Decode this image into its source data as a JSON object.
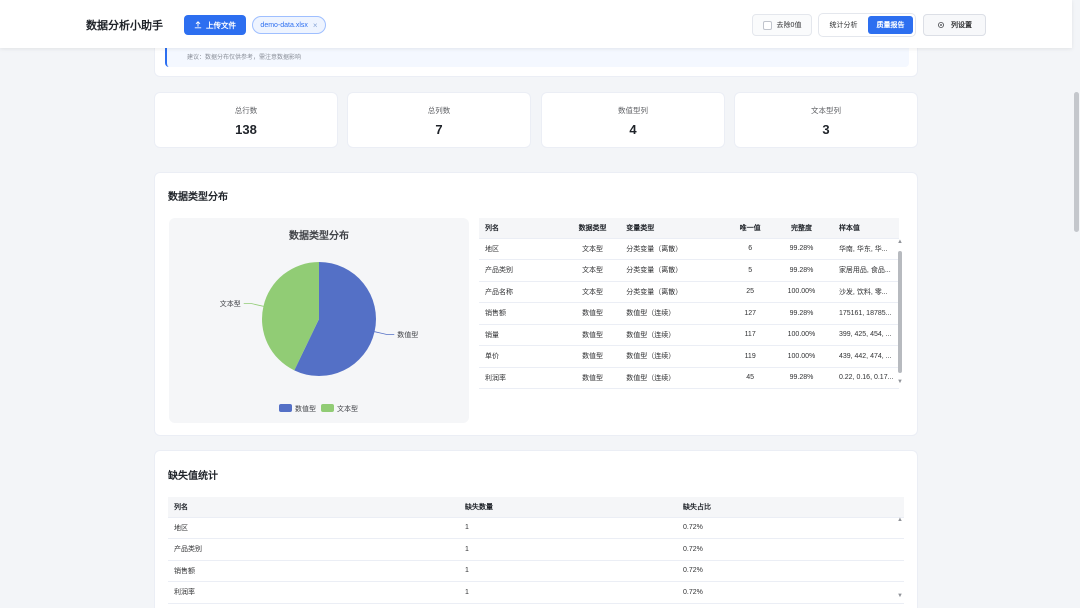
{
  "header": {
    "title": "数据分析小助手",
    "upload_label": "上传文件",
    "file_name": "demo-data.xlsx",
    "file_close": "×",
    "remove_zero_label": "去除0值",
    "tabs": [
      {
        "label": "统计分析",
        "active": false
      },
      {
        "label": "质量报告",
        "active": true
      }
    ],
    "column_settings_label": "列设置"
  },
  "note": {
    "text": "建议：数据分布仅供参考，需注意数据影响"
  },
  "stats": [
    {
      "label": "总行数",
      "value": "138"
    },
    {
      "label": "总列数",
      "value": "7"
    },
    {
      "label": "数值型列",
      "value": "4"
    },
    {
      "label": "文本型列",
      "value": "3"
    }
  ],
  "distribution": {
    "title": "数据类型分布",
    "chart_title": "数据类型分布",
    "table_headers": [
      "列名",
      "数据类型",
      "变量类型",
      "唯一值",
      "完整度",
      "样本值"
    ],
    "rows": [
      {
        "name": "地区",
        "dtype": "文本型",
        "vtype": "分类变量（离散）",
        "unique": "6",
        "complete": "99.28%",
        "sample": "华南, 华东, 华..."
      },
      {
        "name": "产品类别",
        "dtype": "文本型",
        "vtype": "分类变量（离散）",
        "unique": "5",
        "complete": "99.28%",
        "sample": "家居用品, 食品..."
      },
      {
        "name": "产品名称",
        "dtype": "文本型",
        "vtype": "分类变量（离散）",
        "unique": "25",
        "complete": "100.00%",
        "sample": "沙发, 饮料, 零..."
      },
      {
        "name": "销售额",
        "dtype": "数值型",
        "vtype": "数值型（连续）",
        "unique": "127",
        "complete": "99.28%",
        "sample": "175161, 18785..."
      },
      {
        "name": "销量",
        "dtype": "数值型",
        "vtype": "数值型（连续）",
        "unique": "117",
        "complete": "100.00%",
        "sample": "399, 425, 454, ..."
      },
      {
        "name": "单价",
        "dtype": "数值型",
        "vtype": "数值型（连续）",
        "unique": "119",
        "complete": "100.00%",
        "sample": "439, 442, 474, ..."
      },
      {
        "name": "利润率",
        "dtype": "数值型",
        "vtype": "数值型（连续）",
        "unique": "45",
        "complete": "99.28%",
        "sample": "0.22, 0.16, 0.17..."
      }
    ],
    "colors": {
      "numeric": "#5470c6",
      "text": "#91cc75"
    }
  },
  "chart_data": {
    "type": "pie",
    "title": "数据类型分布",
    "categories": [
      "数值型",
      "文本型"
    ],
    "values": [
      4,
      3
    ],
    "colors": [
      "#5470c6",
      "#91cc75"
    ],
    "legend": "bottom"
  },
  "missing": {
    "title": "缺失值统计",
    "table_headers": [
      "列名",
      "缺失数量",
      "缺失占比"
    ],
    "rows": [
      {
        "name": "地区",
        "count": "1",
        "ratio": "0.72%"
      },
      {
        "name": "产品类别",
        "count": "1",
        "ratio": "0.72%"
      },
      {
        "name": "销售额",
        "count": "1",
        "ratio": "0.72%"
      },
      {
        "name": "利润率",
        "count": "1",
        "ratio": "0.72%"
      }
    ]
  }
}
